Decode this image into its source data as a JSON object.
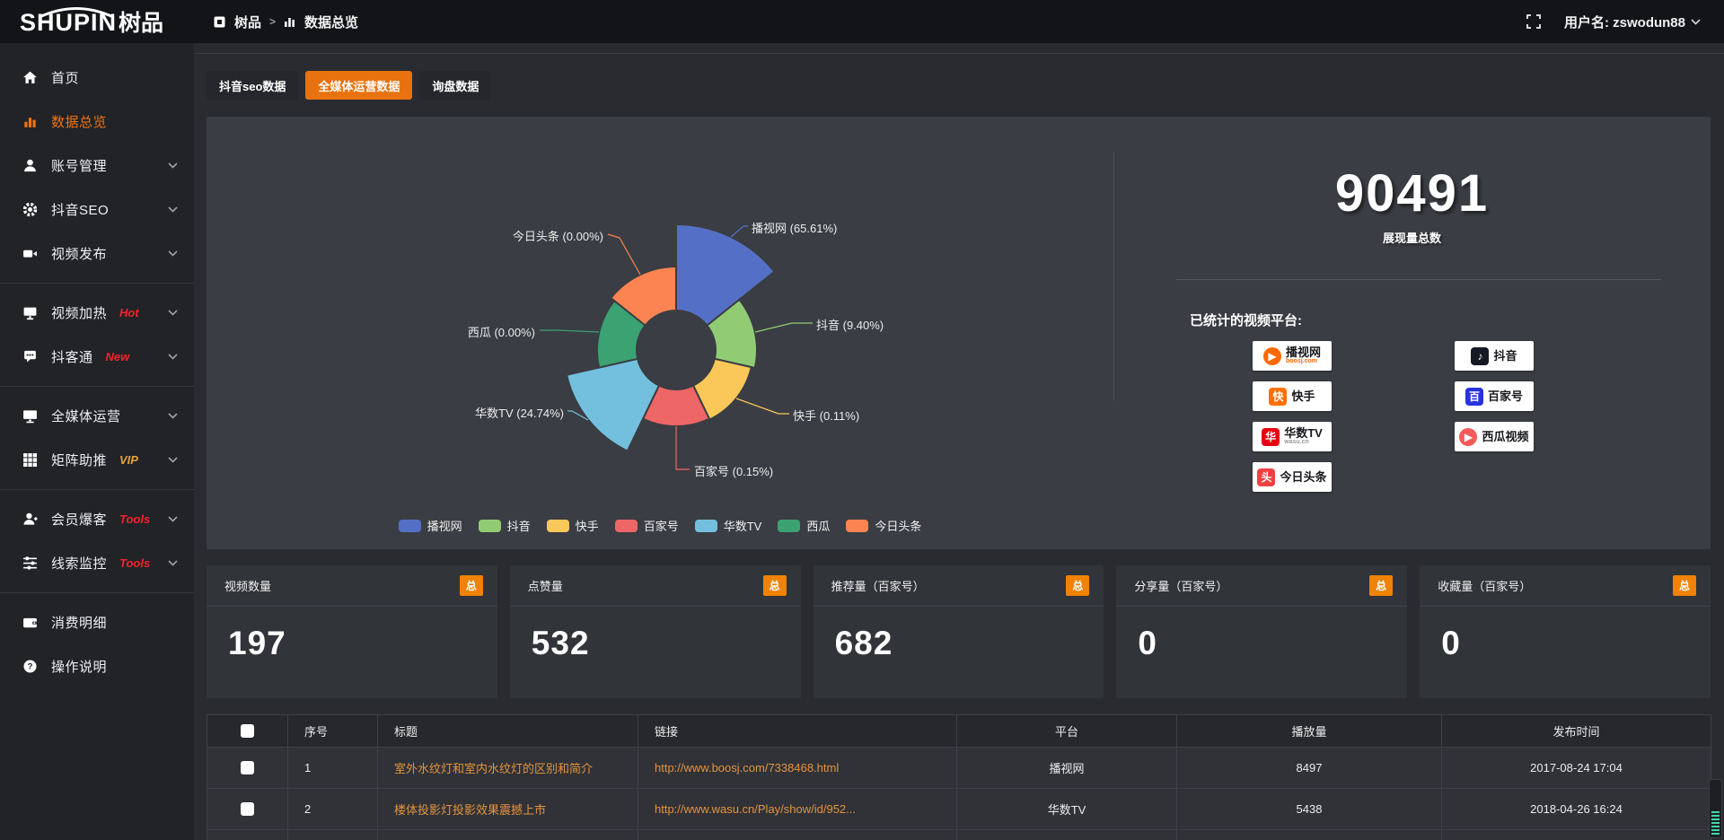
{
  "topbar": {
    "logo_en": "SHUPIN",
    "logo_cn": "树品",
    "breadcrumb": {
      "root": "树品",
      "separator": ">",
      "current": "数据总览"
    },
    "username": "用户名: zswodun88"
  },
  "sidebar": {
    "items": [
      {
        "label": "首页",
        "icon": "home"
      },
      {
        "label": "数据总览",
        "icon": "chart",
        "active": true
      },
      {
        "label": "账号管理",
        "icon": "user",
        "chevron": true
      },
      {
        "label": "抖音SEO",
        "icon": "gear",
        "chevron": true
      },
      {
        "label": "视频发布",
        "icon": "video",
        "chevron": true
      },
      {
        "divider": true
      },
      {
        "label": "视频加热",
        "icon": "screen",
        "badge": "Hot",
        "badge_color": "#f5222d",
        "chevron": true
      },
      {
        "label": "抖客通",
        "icon": "chat",
        "badge": "New",
        "badge_color": "#f5222d",
        "chevron": true
      },
      {
        "divider": true
      },
      {
        "label": "全媒体运营",
        "icon": "monitor",
        "chevron": true
      },
      {
        "label": "矩阵助推",
        "icon": "grid",
        "badge": "VIP",
        "badge_color": "#e6a23c",
        "chevron": true
      },
      {
        "divider": true
      },
      {
        "label": "会员爆客",
        "icon": "member",
        "badge": "Tools",
        "badge_color": "#f5222d",
        "chevron": true
      },
      {
        "label": "线索监控",
        "icon": "sliders",
        "badge": "Tools",
        "badge_color": "#f5222d",
        "chevron": true
      },
      {
        "divider": true
      },
      {
        "label": "消费明细",
        "icon": "wallet"
      },
      {
        "label": "操作说明",
        "icon": "question"
      }
    ]
  },
  "tabs": [
    {
      "label": "抖音seo数据",
      "active": false
    },
    {
      "label": "全媒体运营数据",
      "active": true
    },
    {
      "label": "询盘数据",
      "active": false
    }
  ],
  "chart_data": {
    "type": "pie",
    "variant": "nightingale-rose",
    "series": [
      {
        "name": "播视网",
        "percent": 65.61
      },
      {
        "name": "抖音",
        "percent": 9.4
      },
      {
        "name": "快手",
        "percent": 0.11
      },
      {
        "name": "百家号",
        "percent": 0.15
      },
      {
        "name": "华数TV",
        "percent": 24.74
      },
      {
        "name": "西瓜",
        "percent": 0.0
      },
      {
        "name": "今日头条",
        "percent": 0.0
      }
    ],
    "colors": [
      "#5470c6",
      "#91cc75",
      "#fac858",
      "#ee6666",
      "#73c0de",
      "#3ba272",
      "#fc8452"
    ],
    "legend": [
      "播视网",
      "抖音",
      "快手",
      "百家号",
      "华数TV",
      "西瓜",
      "今日头条"
    ],
    "legend_position": "bottom",
    "label_format": "{name} ({percent}%)"
  },
  "summary": {
    "total_value": "90491",
    "total_label": "展现量总数",
    "platforms_label": "已统计的视频平台:",
    "platform_badges_left": [
      {
        "name": "播视网",
        "sub": "boosj.com",
        "sub_color": "#f60",
        "logo_char": "▶",
        "logo_bg": "#ff6a00",
        "logo_shape": "round"
      },
      {
        "name": "快手",
        "logo_char": "快",
        "logo_bg": "#ff7000",
        "logo_shape": "square"
      },
      {
        "name": "华数TV",
        "sub": "wasu.cn",
        "sub_color": "#999",
        "logo_char": "华",
        "logo_bg": "#e60012",
        "logo_shape": "square"
      },
      {
        "name": "今日头条",
        "logo_char": "头",
        "logo_bg": "#f04142",
        "logo_shape": "square"
      }
    ],
    "platform_badges_right": [
      {
        "name": "抖音",
        "logo_char": "♪",
        "logo_bg": "#161823",
        "logo_shape": "square"
      },
      {
        "name": "百家号",
        "logo_char": "百",
        "logo_bg": "#2932e1",
        "logo_shape": "square"
      },
      {
        "name": "西瓜视频",
        "logo_char": "▶",
        "logo_bg": "#f85959",
        "logo_shape": "round"
      }
    ]
  },
  "stat_cards": [
    {
      "title": "视频数量",
      "badge": "总",
      "value": "197"
    },
    {
      "title": "点赞量",
      "badge": "总",
      "value": "532"
    },
    {
      "title": "推荐量（百家号）",
      "badge": "总",
      "value": "682"
    },
    {
      "title": "分享量（百家号）",
      "badge": "总",
      "value": "0"
    },
    {
      "title": "收藏量（百家号）",
      "badge": "总",
      "value": "0"
    }
  ],
  "table": {
    "headers": [
      "序号",
      "标题",
      "链接",
      "平台",
      "播放量",
      "发布时间"
    ],
    "rows": [
      {
        "no": "1",
        "title": "室外水纹灯和室内水纹灯的区别和简介",
        "link": "http://www.boosj.com/7338468.html",
        "platform": "播视网",
        "plays": "8497",
        "time": "2017-08-24 17:04"
      },
      {
        "no": "2",
        "title": "楼体投影灯投影效果震撼上市",
        "link": "http://www.wasu.cn/Play/show/id/952...",
        "platform": "华数TV",
        "plays": "5438",
        "time": "2018-04-26 16:24"
      }
    ]
  },
  "colors": {
    "accent_orange": "#e8720d",
    "badge_orange": "#ef8207",
    "link_orange": "#e5933c",
    "badge_red": "#f5222d",
    "badge_vip": "#e6a23c",
    "panel_bg": "#3a3d43"
  }
}
